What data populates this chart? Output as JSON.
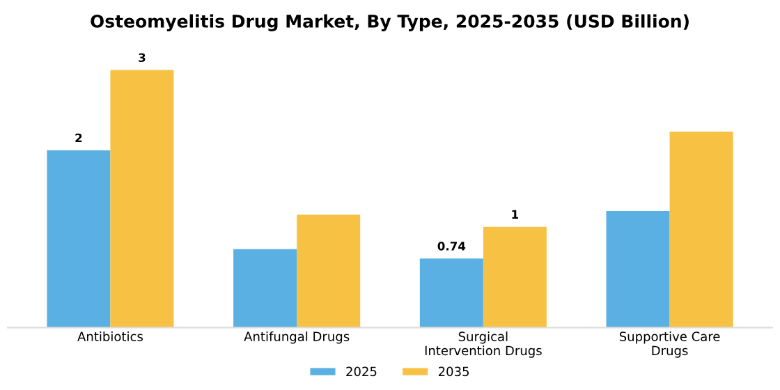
{
  "chart_data": {
    "type": "bar",
    "title": "Osteomyelitis Drug Market, By Type, 2025-2035 (USD Billion)",
    "categories": [
      "Antibiotics",
      "Antifungal Drugs",
      "Surgical\nIntervention Drugs",
      "Supportive Care\nDrugs"
    ],
    "series": [
      {
        "name": "2025",
        "color": "#5aafe3",
        "values": [
          1.9,
          0.84,
          0.74,
          1.25
        ],
        "value_labels": [
          "2",
          null,
          "0.74",
          null
        ]
      },
      {
        "name": "2035",
        "color": "#f7c244",
        "values": [
          2.76,
          1.21,
          1.08,
          2.1
        ],
        "value_labels": [
          "3",
          null,
          "1",
          null
        ]
      }
    ],
    "legend": "bottom",
    "grid": false
  }
}
